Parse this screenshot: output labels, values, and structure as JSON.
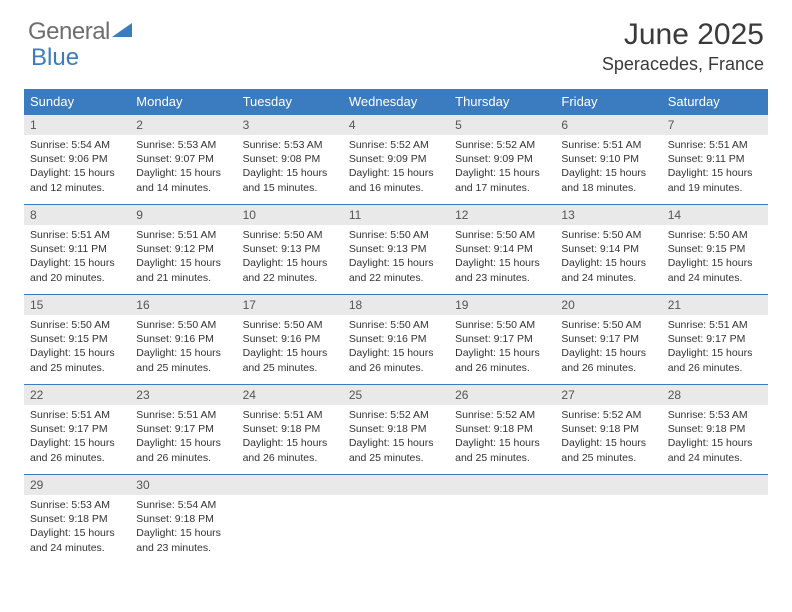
{
  "brand": {
    "part1": "General",
    "part2": "Blue"
  },
  "title": "June 2025",
  "location": "Speracedes, France",
  "colors": {
    "header_bg": "#3b7bbf",
    "header_text": "#ffffff",
    "daynum_bg": "#e9e9e9",
    "border": "#3b7bbf",
    "text": "#333333",
    "title_text": "#3a3a3a",
    "logo_gray": "#6e6e6e"
  },
  "weekdays": [
    "Sunday",
    "Monday",
    "Tuesday",
    "Wednesday",
    "Thursday",
    "Friday",
    "Saturday"
  ],
  "days": [
    {
      "n": "1",
      "sr": "5:54 AM",
      "ss": "9:06 PM",
      "dl": "15 hours and 12 minutes."
    },
    {
      "n": "2",
      "sr": "5:53 AM",
      "ss": "9:07 PM",
      "dl": "15 hours and 14 minutes."
    },
    {
      "n": "3",
      "sr": "5:53 AM",
      "ss": "9:08 PM",
      "dl": "15 hours and 15 minutes."
    },
    {
      "n": "4",
      "sr": "5:52 AM",
      "ss": "9:09 PM",
      "dl": "15 hours and 16 minutes."
    },
    {
      "n": "5",
      "sr": "5:52 AM",
      "ss": "9:09 PM",
      "dl": "15 hours and 17 minutes."
    },
    {
      "n": "6",
      "sr": "5:51 AM",
      "ss": "9:10 PM",
      "dl": "15 hours and 18 minutes."
    },
    {
      "n": "7",
      "sr": "5:51 AM",
      "ss": "9:11 PM",
      "dl": "15 hours and 19 minutes."
    },
    {
      "n": "8",
      "sr": "5:51 AM",
      "ss": "9:11 PM",
      "dl": "15 hours and 20 minutes."
    },
    {
      "n": "9",
      "sr": "5:51 AM",
      "ss": "9:12 PM",
      "dl": "15 hours and 21 minutes."
    },
    {
      "n": "10",
      "sr": "5:50 AM",
      "ss": "9:13 PM",
      "dl": "15 hours and 22 minutes."
    },
    {
      "n": "11",
      "sr": "5:50 AM",
      "ss": "9:13 PM",
      "dl": "15 hours and 22 minutes."
    },
    {
      "n": "12",
      "sr": "5:50 AM",
      "ss": "9:14 PM",
      "dl": "15 hours and 23 minutes."
    },
    {
      "n": "13",
      "sr": "5:50 AM",
      "ss": "9:14 PM",
      "dl": "15 hours and 24 minutes."
    },
    {
      "n": "14",
      "sr": "5:50 AM",
      "ss": "9:15 PM",
      "dl": "15 hours and 24 minutes."
    },
    {
      "n": "15",
      "sr": "5:50 AM",
      "ss": "9:15 PM",
      "dl": "15 hours and 25 minutes."
    },
    {
      "n": "16",
      "sr": "5:50 AM",
      "ss": "9:16 PM",
      "dl": "15 hours and 25 minutes."
    },
    {
      "n": "17",
      "sr": "5:50 AM",
      "ss": "9:16 PM",
      "dl": "15 hours and 25 minutes."
    },
    {
      "n": "18",
      "sr": "5:50 AM",
      "ss": "9:16 PM",
      "dl": "15 hours and 26 minutes."
    },
    {
      "n": "19",
      "sr": "5:50 AM",
      "ss": "9:17 PM",
      "dl": "15 hours and 26 minutes."
    },
    {
      "n": "20",
      "sr": "5:50 AM",
      "ss": "9:17 PM",
      "dl": "15 hours and 26 minutes."
    },
    {
      "n": "21",
      "sr": "5:51 AM",
      "ss": "9:17 PM",
      "dl": "15 hours and 26 minutes."
    },
    {
      "n": "22",
      "sr": "5:51 AM",
      "ss": "9:17 PM",
      "dl": "15 hours and 26 minutes."
    },
    {
      "n": "23",
      "sr": "5:51 AM",
      "ss": "9:17 PM",
      "dl": "15 hours and 26 minutes."
    },
    {
      "n": "24",
      "sr": "5:51 AM",
      "ss": "9:18 PM",
      "dl": "15 hours and 26 minutes."
    },
    {
      "n": "25",
      "sr": "5:52 AM",
      "ss": "9:18 PM",
      "dl": "15 hours and 25 minutes."
    },
    {
      "n": "26",
      "sr": "5:52 AM",
      "ss": "9:18 PM",
      "dl": "15 hours and 25 minutes."
    },
    {
      "n": "27",
      "sr": "5:52 AM",
      "ss": "9:18 PM",
      "dl": "15 hours and 25 minutes."
    },
    {
      "n": "28",
      "sr": "5:53 AM",
      "ss": "9:18 PM",
      "dl": "15 hours and 24 minutes."
    },
    {
      "n": "29",
      "sr": "5:53 AM",
      "ss": "9:18 PM",
      "dl": "15 hours and 24 minutes."
    },
    {
      "n": "30",
      "sr": "5:54 AM",
      "ss": "9:18 PM",
      "dl": "15 hours and 23 minutes."
    }
  ],
  "labels": {
    "sunrise": "Sunrise:",
    "sunset": "Sunset:",
    "daylight": "Daylight:"
  }
}
